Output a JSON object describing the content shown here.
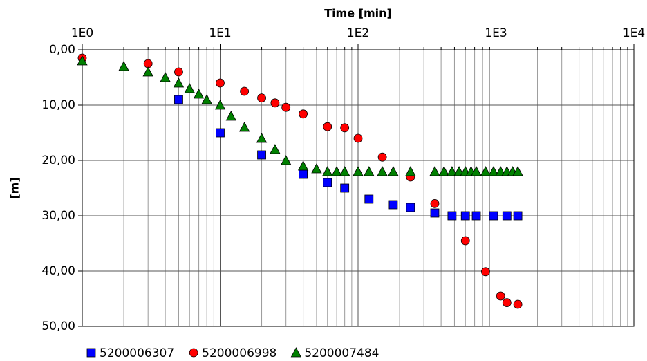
{
  "chart_data": {
    "type": "scatter",
    "x_label": "Time [min]",
    "y_label": "[m]",
    "xlim": [
      1,
      10000
    ],
    "x_log": true,
    "x_axis_position": "top",
    "xticks": [
      {
        "value": 1,
        "label": "1E0"
      },
      {
        "value": 10,
        "label": "1E1"
      },
      {
        "value": 100,
        "label": "1E2"
      },
      {
        "value": 1000,
        "label": "1E3"
      },
      {
        "value": 10000,
        "label": "1E4"
      }
    ],
    "ylim": [
      0,
      50
    ],
    "y_inverted": true,
    "yticks": [
      {
        "value": 0,
        "label": "0,00"
      },
      {
        "value": 10,
        "label": "10,00"
      },
      {
        "value": 20,
        "label": "20,00"
      },
      {
        "value": 30,
        "label": "30,00"
      },
      {
        "value": 40,
        "label": "40,00"
      },
      {
        "value": 50,
        "label": "50,00"
      }
    ],
    "grid": true,
    "legend": "bottom",
    "series": [
      {
        "name": "5200006307",
        "color": "#0000ff",
        "marker": "square",
        "x": [
          5,
          10,
          20,
          40,
          60,
          80,
          120,
          180,
          240,
          360,
          480,
          600,
          720,
          960,
          1200,
          1440
        ],
        "values": [
          9,
          15,
          19,
          22.5,
          24,
          25,
          27,
          28,
          28.5,
          29.5,
          30,
          30,
          30,
          30,
          30,
          30
        ]
      },
      {
        "name": "5200006998",
        "color": "#ff0000",
        "marker": "circle",
        "x": [
          1,
          3,
          5,
          10,
          15,
          20,
          25,
          30,
          40,
          60,
          80,
          100,
          150,
          240,
          360,
          600,
          840,
          1080,
          1200,
          1440
        ],
        "values": [
          1.5,
          2.5,
          4,
          6,
          7.5,
          8.7,
          9.6,
          10.4,
          11.6,
          13.9,
          14.1,
          16,
          19.4,
          23,
          27.8,
          34.5,
          40.1,
          44.5,
          45.7,
          46
        ]
      },
      {
        "name": "5200007484",
        "color": "#008000",
        "marker": "triangle",
        "x": [
          1,
          2,
          3,
          4,
          5,
          6,
          7,
          8,
          10,
          12,
          15,
          20,
          25,
          30,
          40,
          50,
          60,
          70,
          80,
          100,
          120,
          150,
          180,
          240,
          360,
          420,
          480,
          540,
          600,
          660,
          720,
          840,
          960,
          1080,
          1200,
          1320,
          1440
        ],
        "values": [
          2,
          3,
          4,
          5,
          6,
          7,
          8,
          9,
          10,
          12,
          14,
          16,
          18,
          20,
          21,
          21.5,
          22,
          22,
          22,
          22,
          22,
          22,
          22,
          22,
          22,
          22,
          22,
          22,
          22,
          22,
          22,
          22,
          22,
          22,
          22,
          22,
          22
        ]
      }
    ]
  }
}
